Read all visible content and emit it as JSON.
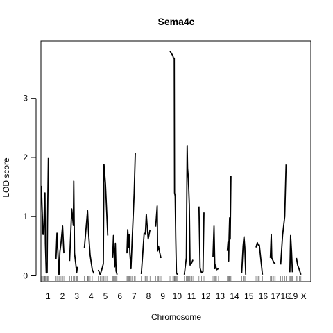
{
  "chart_data": {
    "type": "line",
    "title": "Sema4c",
    "xlabel": "Chromosome",
    "ylabel": "LOD score",
    "ylim": [
      -0.1,
      3.97
    ],
    "y_ticks": [
      0,
      1,
      2,
      3
    ],
    "chromosomes": [
      {
        "label": "1",
        "range": [
          0,
          1.0
        ],
        "points": [
          [
            0.03,
            1.52
          ],
          [
            0.14,
            0.7
          ],
          [
            0.2,
            0.7
          ],
          [
            0.25,
            1.35
          ],
          [
            0.28,
            1.4
          ],
          [
            0.31,
            0.55
          ],
          [
            0.37,
            0.05
          ],
          [
            0.43,
            0.05
          ],
          [
            0.46,
            0.9
          ],
          [
            0.52,
            1.99
          ]
        ]
      },
      {
        "label": "2",
        "range": [
          1.0,
          2.0
        ],
        "points": [
          [
            1.05,
            0.28
          ],
          [
            1.12,
            0.72
          ],
          [
            1.26,
            0.02
          ],
          [
            1.32,
            0.4
          ],
          [
            1.4,
            0.55
          ],
          [
            1.51,
            0.84
          ],
          [
            1.6,
            0.38
          ]
        ]
      },
      {
        "label": "3",
        "range": [
          2.0,
          3.0
        ],
        "points": [
          [
            2.0,
            0.25
          ],
          [
            2.15,
            1.13
          ],
          [
            2.26,
            0.85
          ],
          [
            2.29,
            1.6
          ],
          [
            2.34,
            0.38
          ],
          [
            2.43,
            0.2
          ],
          [
            2.49,
            0.05
          ],
          [
            2.54,
            0.15
          ]
        ]
      },
      {
        "label": "4",
        "range": [
          3.0,
          4.0
        ],
        "points": [
          [
            3.03,
            0.47
          ],
          [
            3.25,
            1.1
          ],
          [
            3.28,
            0.95
          ],
          [
            3.33,
            0.7
          ],
          [
            3.43,
            0.35
          ],
          [
            3.58,
            0.1
          ],
          [
            3.7,
            0.04
          ]
        ]
      },
      {
        "label": "5",
        "range": [
          4.0,
          5.0
        ],
        "points": [
          [
            4.0,
            0.1
          ],
          [
            4.13,
            0.02
          ],
          [
            4.26,
            0.12
          ],
          [
            4.35,
            0.2
          ],
          [
            4.4,
            1.88
          ],
          [
            4.5,
            1.55
          ],
          [
            4.6,
            1.0
          ],
          [
            4.66,
            0.68
          ]
        ]
      },
      {
        "label": "6",
        "range": [
          5.0,
          6.0
        ],
        "points": [
          [
            5.0,
            0.3
          ],
          [
            5.06,
            0.68
          ],
          [
            5.14,
            0.15
          ],
          [
            5.19,
            0.55
          ],
          [
            5.24,
            0.08
          ],
          [
            5.31,
            0.02
          ]
        ]
      },
      {
        "label": "7",
        "range": [
          6.0,
          7.0
        ],
        "points": [
          [
            6.0,
            0.38
          ],
          [
            6.05,
            0.78
          ],
          [
            6.12,
            0.48
          ],
          [
            6.16,
            0.7
          ],
          [
            6.2,
            0.38
          ],
          [
            6.28,
            0.12
          ],
          [
            6.35,
            0.55
          ],
          [
            6.5,
            1.4
          ],
          [
            6.58,
            2.07
          ]
        ]
      },
      {
        "label": "8",
        "range": [
          7.0,
          8.0
        ],
        "points": [
          [
            7.0,
            0.03
          ],
          [
            7.2,
            0.72
          ],
          [
            7.28,
            0.7
          ],
          [
            7.35,
            1.04
          ],
          [
            7.41,
            0.83
          ],
          [
            7.48,
            0.62
          ],
          [
            7.61,
            0.78
          ]
        ]
      },
      {
        "label": "9",
        "range": [
          8.0,
          9.0
        ],
        "points": [
          [
            8.0,
            0.83
          ],
          [
            8.11,
            1.18
          ],
          [
            8.14,
            0.42
          ],
          [
            8.2,
            0.5
          ],
          [
            8.28,
            0.4
          ],
          [
            8.37,
            0.3
          ]
        ]
      },
      {
        "label": "10",
        "range": [
          9.0,
          10.0
        ],
        "points": [
          [
            9.0,
            3.8
          ],
          [
            9.2,
            3.72
          ],
          [
            9.24,
            3.68
          ],
          [
            9.3,
            3.68
          ],
          [
            9.32,
            1.4
          ],
          [
            9.36,
            1.35
          ],
          [
            9.4,
            0.65
          ],
          [
            9.45,
            0.05
          ],
          [
            9.52,
            0.02
          ]
        ]
      },
      {
        "label": "11",
        "range": [
          10.0,
          11.0
        ],
        "points": [
          [
            10.0,
            0.02
          ],
          [
            10.14,
            0.3
          ],
          [
            10.2,
            2.2
          ],
          [
            10.23,
            1.82
          ],
          [
            10.28,
            1.65
          ],
          [
            10.35,
            1.2
          ],
          [
            10.4,
            0.18
          ],
          [
            10.52,
            0.22
          ],
          [
            10.6,
            0.27
          ]
        ]
      },
      {
        "label": "12",
        "range": [
          11.0,
          12.0
        ],
        "points": [
          [
            11.02,
            1.17
          ],
          [
            11.1,
            0.13
          ],
          [
            11.2,
            0.05
          ],
          [
            11.3,
            0.07
          ],
          [
            11.37,
            1.07
          ]
        ]
      },
      {
        "label": "13",
        "range": [
          12.0,
          13.0
        ],
        "points": [
          [
            12.0,
            0.32
          ],
          [
            12.07,
            0.84
          ],
          [
            12.13,
            0.12
          ],
          [
            12.18,
            0.18
          ],
          [
            12.24,
            0.1
          ],
          [
            12.38,
            0.12
          ]
        ]
      },
      {
        "label": "14",
        "range": [
          13.0,
          14.0
        ],
        "points": [
          [
            13.0,
            0.42
          ],
          [
            13.05,
            0.57
          ],
          [
            13.09,
            0.25
          ],
          [
            13.12,
            0.65
          ],
          [
            13.16,
            0.98
          ],
          [
            13.2,
            0.62
          ],
          [
            13.25,
            1.69
          ]
        ]
      },
      {
        "label": "15",
        "range": [
          14.0,
          15.0
        ],
        "points": [
          [
            14.0,
            0.05
          ],
          [
            14.1,
            0.5
          ],
          [
            14.16,
            0.66
          ],
          [
            14.22,
            0.48
          ],
          [
            14.28,
            0.02
          ]
        ]
      },
      {
        "label": "16",
        "range": [
          15.0,
          16.0
        ],
        "points": [
          [
            15.0,
            0.48
          ],
          [
            15.09,
            0.56
          ],
          [
            15.16,
            0.52
          ],
          [
            15.23,
            0.52
          ],
          [
            15.45,
            0.02
          ]
        ]
      },
      {
        "label": "17",
        "range": [
          16.0,
          16.72
        ],
        "points": [
          [
            16.0,
            0.3
          ],
          [
            16.06,
            0.7
          ],
          [
            16.1,
            0.3
          ],
          [
            16.25,
            0.22
          ],
          [
            16.34,
            0.2
          ]
        ]
      },
      {
        "label": "18",
        "range": [
          16.72,
          17.36
        ],
        "points": [
          [
            16.72,
            0.19
          ],
          [
            16.85,
            0.68
          ],
          [
            17.0,
            1.0
          ],
          [
            17.1,
            1.88
          ]
        ]
      },
      {
        "label": "19",
        "range": [
          17.36,
          17.82
        ],
        "points": [
          [
            17.36,
            0.06
          ],
          [
            17.41,
            0.68
          ],
          [
            17.48,
            0.4
          ],
          [
            17.54,
            0.06
          ]
        ]
      },
      {
        "label": "X",
        "range": [
          17.82,
          18.82
        ],
        "points": [
          [
            17.82,
            0.3
          ],
          [
            17.9,
            0.18
          ],
          [
            18.02,
            0.1
          ],
          [
            18.13,
            0.02
          ]
        ]
      }
    ]
  }
}
